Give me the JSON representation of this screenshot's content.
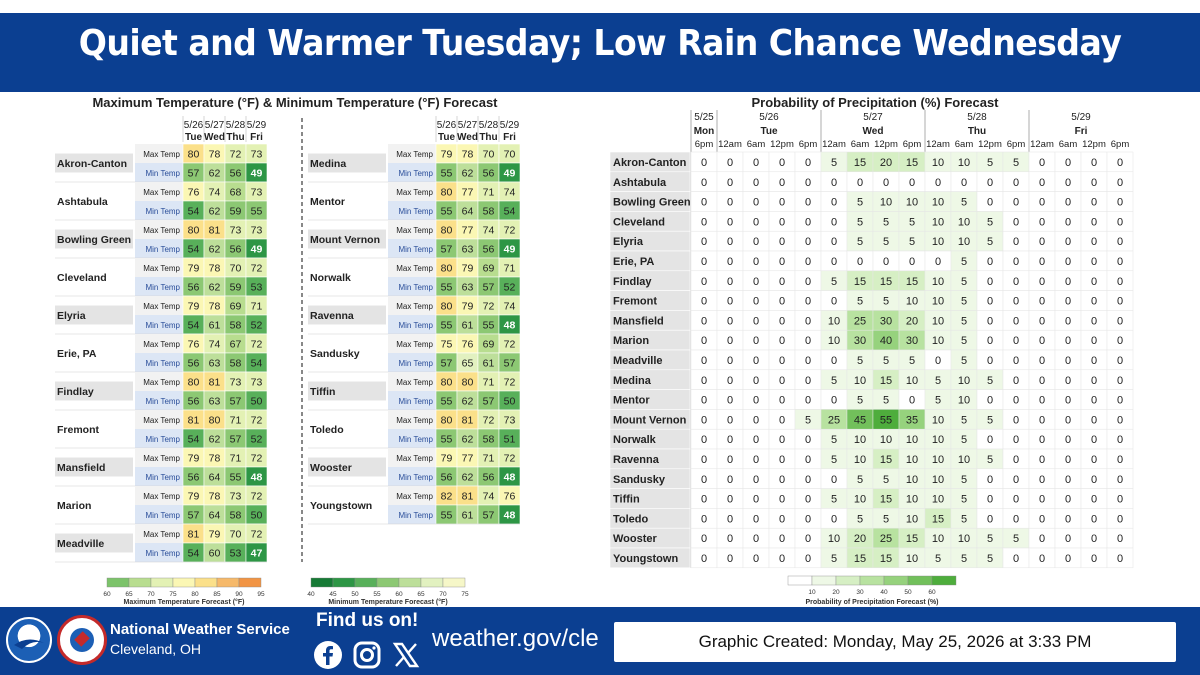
{
  "banner": {
    "title": "Quiet and Warmer Tuesday; Low Rain Chance Wednesday"
  },
  "temperature": {
    "title": "Maximum Temperature (°F) & Minimum Temperature (°F) Forecast",
    "dates": [
      "5/26",
      "5/27",
      "5/28",
      "5/29"
    ],
    "days": [
      "Tue",
      "Wed",
      "Thu",
      "Fri"
    ],
    "max_label": "Max Temp",
    "min_label": "Min Temp",
    "left": [
      {
        "name": "Akron-Canton",
        "max": [
          80,
          78,
          72,
          73
        ],
        "min": [
          57,
          62,
          56,
          49
        ]
      },
      {
        "name": "Ashtabula",
        "max": [
          76,
          74,
          68,
          73
        ],
        "min": [
          54,
          62,
          59,
          55
        ]
      },
      {
        "name": "Bowling Green",
        "max": [
          80,
          81,
          73,
          73
        ],
        "min": [
          54,
          62,
          56,
          49
        ]
      },
      {
        "name": "Cleveland",
        "max": [
          79,
          78,
          70,
          72
        ],
        "min": [
          56,
          62,
          59,
          53
        ]
      },
      {
        "name": "Elyria",
        "max": [
          79,
          78,
          69,
          71
        ],
        "min": [
          54,
          61,
          58,
          52
        ]
      },
      {
        "name": "Erie, PA",
        "max": [
          76,
          74,
          67,
          72
        ],
        "min": [
          56,
          63,
          58,
          54
        ]
      },
      {
        "name": "Findlay",
        "max": [
          80,
          81,
          73,
          73
        ],
        "min": [
          56,
          63,
          57,
          50
        ]
      },
      {
        "name": "Fremont",
        "max": [
          81,
          80,
          71,
          72
        ],
        "min": [
          54,
          62,
          57,
          52
        ]
      },
      {
        "name": "Mansfield",
        "max": [
          79,
          78,
          71,
          72
        ],
        "min": [
          56,
          64,
          55,
          48
        ]
      },
      {
        "name": "Marion",
        "max": [
          79,
          78,
          73,
          72
        ],
        "min": [
          57,
          64,
          58,
          50
        ]
      },
      {
        "name": "Meadville",
        "max": [
          81,
          79,
          70,
          72
        ],
        "min": [
          54,
          60,
          53,
          47
        ]
      }
    ],
    "right": [
      {
        "name": "Medina",
        "max": [
          79,
          78,
          70,
          70
        ],
        "min": [
          55,
          62,
          56,
          49
        ]
      },
      {
        "name": "Mentor",
        "max": [
          80,
          77,
          71,
          74
        ],
        "min": [
          55,
          64,
          58,
          54
        ]
      },
      {
        "name": "Mount Vernon",
        "max": [
          80,
          77,
          74,
          72
        ],
        "min": [
          57,
          63,
          56,
          49
        ]
      },
      {
        "name": "Norwalk",
        "max": [
          80,
          79,
          69,
          71
        ],
        "min": [
          55,
          63,
          57,
          52
        ]
      },
      {
        "name": "Ravenna",
        "max": [
          80,
          79,
          72,
          74
        ],
        "min": [
          55,
          61,
          55,
          48
        ]
      },
      {
        "name": "Sandusky",
        "max": [
          75,
          76,
          69,
          72
        ],
        "min": [
          57,
          65,
          61,
          57
        ]
      },
      {
        "name": "Tiffin",
        "max": [
          80,
          80,
          71,
          72
        ],
        "min": [
          55,
          62,
          57,
          50
        ]
      },
      {
        "name": "Toledo",
        "max": [
          80,
          81,
          72,
          73
        ],
        "min": [
          55,
          62,
          58,
          51
        ]
      },
      {
        "name": "Wooster",
        "max": [
          79,
          77,
          71,
          72
        ],
        "min": [
          56,
          62,
          56,
          48
        ]
      },
      {
        "name": "Youngstown",
        "max": [
          82,
          81,
          74,
          76
        ],
        "min": [
          55,
          61,
          57,
          48
        ]
      }
    ],
    "max_legend": {
      "ticks": [
        60,
        65,
        70,
        75,
        80,
        85,
        90,
        95
      ],
      "label": "Maximum Temperature Forecast (°F)"
    },
    "min_legend": {
      "ticks": [
        40,
        45,
        50,
        55,
        60,
        65,
        70,
        75
      ],
      "label": "Minimum Temperature Forecast (°F)"
    },
    "colors": {
      "max": [
        "#7cc36a",
        "#b8dd8f",
        "#e3f1b4",
        "#fbf7b4",
        "#fbe08a",
        "#f6b96a",
        "#f19444"
      ],
      "min": [
        "#167a35",
        "#2d9645",
        "#58b05a",
        "#8cc873",
        "#bddf9a",
        "#e2f1c0",
        "#f6f7c8"
      ]
    }
  },
  "pop": {
    "title": "Probability of Precipitation (%) Forecast",
    "date_groups": [
      {
        "date": "5/25",
        "day": "Mon",
        "times": [
          "6pm"
        ]
      },
      {
        "date": "5/26",
        "day": "Tue",
        "times": [
          "12am",
          "6am",
          "12pm",
          "6pm"
        ]
      },
      {
        "date": "5/27",
        "day": "Wed",
        "times": [
          "12am",
          "6am",
          "12pm",
          "6pm"
        ]
      },
      {
        "date": "5/28",
        "day": "Thu",
        "times": [
          "12am",
          "6am",
          "12pm",
          "6pm"
        ]
      },
      {
        "date": "5/29",
        "day": "Fri",
        "times": [
          "12am",
          "6am",
          "12pm",
          "6pm"
        ]
      }
    ],
    "rows": [
      {
        "name": "Akron-Canton",
        "values": [
          0,
          0,
          0,
          0,
          0,
          5,
          15,
          20,
          15,
          10,
          10,
          5,
          5,
          0,
          0,
          0,
          0
        ]
      },
      {
        "name": "Ashtabula",
        "values": [
          0,
          0,
          0,
          0,
          0,
          0,
          0,
          0,
          0,
          0,
          0,
          0,
          0,
          0,
          0,
          0,
          0
        ]
      },
      {
        "name": "Bowling Green",
        "values": [
          0,
          0,
          0,
          0,
          0,
          0,
          5,
          10,
          10,
          10,
          5,
          0,
          0,
          0,
          0,
          0,
          0
        ]
      },
      {
        "name": "Cleveland",
        "values": [
          0,
          0,
          0,
          0,
          0,
          0,
          5,
          5,
          5,
          10,
          10,
          5,
          0,
          0,
          0,
          0,
          0
        ]
      },
      {
        "name": "Elyria",
        "values": [
          0,
          0,
          0,
          0,
          0,
          0,
          5,
          5,
          5,
          10,
          10,
          5,
          0,
          0,
          0,
          0,
          0
        ]
      },
      {
        "name": "Erie, PA",
        "values": [
          0,
          0,
          0,
          0,
          0,
          0,
          0,
          0,
          0,
          0,
          5,
          0,
          0,
          0,
          0,
          0,
          0
        ]
      },
      {
        "name": "Findlay",
        "values": [
          0,
          0,
          0,
          0,
          0,
          5,
          15,
          15,
          15,
          10,
          5,
          0,
          0,
          0,
          0,
          0,
          0
        ]
      },
      {
        "name": "Fremont",
        "values": [
          0,
          0,
          0,
          0,
          0,
          0,
          5,
          5,
          10,
          10,
          5,
          0,
          0,
          0,
          0,
          0,
          0
        ]
      },
      {
        "name": "Mansfield",
        "values": [
          0,
          0,
          0,
          0,
          0,
          10,
          25,
          30,
          20,
          10,
          5,
          0,
          0,
          0,
          0,
          0,
          0
        ]
      },
      {
        "name": "Marion",
        "values": [
          0,
          0,
          0,
          0,
          0,
          10,
          30,
          40,
          30,
          10,
          5,
          0,
          0,
          0,
          0,
          0,
          0
        ]
      },
      {
        "name": "Meadville",
        "values": [
          0,
          0,
          0,
          0,
          0,
          0,
          5,
          5,
          5,
          0,
          5,
          0,
          0,
          0,
          0,
          0,
          0
        ]
      },
      {
        "name": "Medina",
        "values": [
          0,
          0,
          0,
          0,
          0,
          5,
          10,
          15,
          10,
          5,
          10,
          5,
          0,
          0,
          0,
          0,
          0
        ]
      },
      {
        "name": "Mentor",
        "values": [
          0,
          0,
          0,
          0,
          0,
          0,
          5,
          5,
          0,
          5,
          10,
          0,
          0,
          0,
          0,
          0,
          0
        ]
      },
      {
        "name": "Mount Vernon",
        "values": [
          0,
          0,
          0,
          0,
          5,
          25,
          45,
          55,
          35,
          10,
          5,
          5,
          0,
          0,
          0,
          0,
          0
        ]
      },
      {
        "name": "Norwalk",
        "values": [
          0,
          0,
          0,
          0,
          0,
          5,
          10,
          10,
          10,
          10,
          5,
          0,
          0,
          0,
          0,
          0,
          0
        ]
      },
      {
        "name": "Ravenna",
        "values": [
          0,
          0,
          0,
          0,
          0,
          5,
          10,
          15,
          10,
          10,
          10,
          5,
          0,
          0,
          0,
          0,
          0
        ]
      },
      {
        "name": "Sandusky",
        "values": [
          0,
          0,
          0,
          0,
          0,
          0,
          5,
          5,
          10,
          10,
          5,
          0,
          0,
          0,
          0,
          0,
          0
        ]
      },
      {
        "name": "Tiffin",
        "values": [
          0,
          0,
          0,
          0,
          0,
          5,
          10,
          15,
          10,
          10,
          5,
          0,
          0,
          0,
          0,
          0,
          0
        ]
      },
      {
        "name": "Toledo",
        "values": [
          0,
          0,
          0,
          0,
          0,
          0,
          5,
          5,
          10,
          15,
          5,
          0,
          0,
          0,
          0,
          0,
          0
        ]
      },
      {
        "name": "Wooster",
        "values": [
          0,
          0,
          0,
          0,
          0,
          10,
          20,
          25,
          15,
          10,
          10,
          5,
          5,
          0,
          0,
          0,
          0
        ]
      },
      {
        "name": "Youngstown",
        "values": [
          0,
          0,
          0,
          0,
          0,
          5,
          15,
          15,
          10,
          5,
          5,
          5,
          0,
          0,
          0,
          0,
          0
        ]
      }
    ],
    "legend": {
      "ticks": [
        10,
        20,
        30,
        40,
        50,
        60
      ],
      "label": "Probability of Precipitation Forecast (%)"
    },
    "colors": [
      "#ffffff",
      "#eef8e6",
      "#d6efc4",
      "#b8e2a0",
      "#96d27d",
      "#72c05b",
      "#4ead3c"
    ]
  },
  "footer": {
    "agency": "National Weather Service",
    "office": "Cleveland, OH",
    "find_us": "Find us on!",
    "website": "weather.gov/cle",
    "created": "Graphic Created: Monday, May 25, 2026 at 3:33 PM",
    "noaa_logo_text": "NOAA",
    "nws_logo_text": "NATIONAL WEATHER SERVICE",
    "icons": [
      "noaa-logo",
      "nws-logo",
      "facebook-icon",
      "instagram-icon",
      "x-icon"
    ],
    "colors": {
      "footer": "#0b3f91"
    }
  }
}
